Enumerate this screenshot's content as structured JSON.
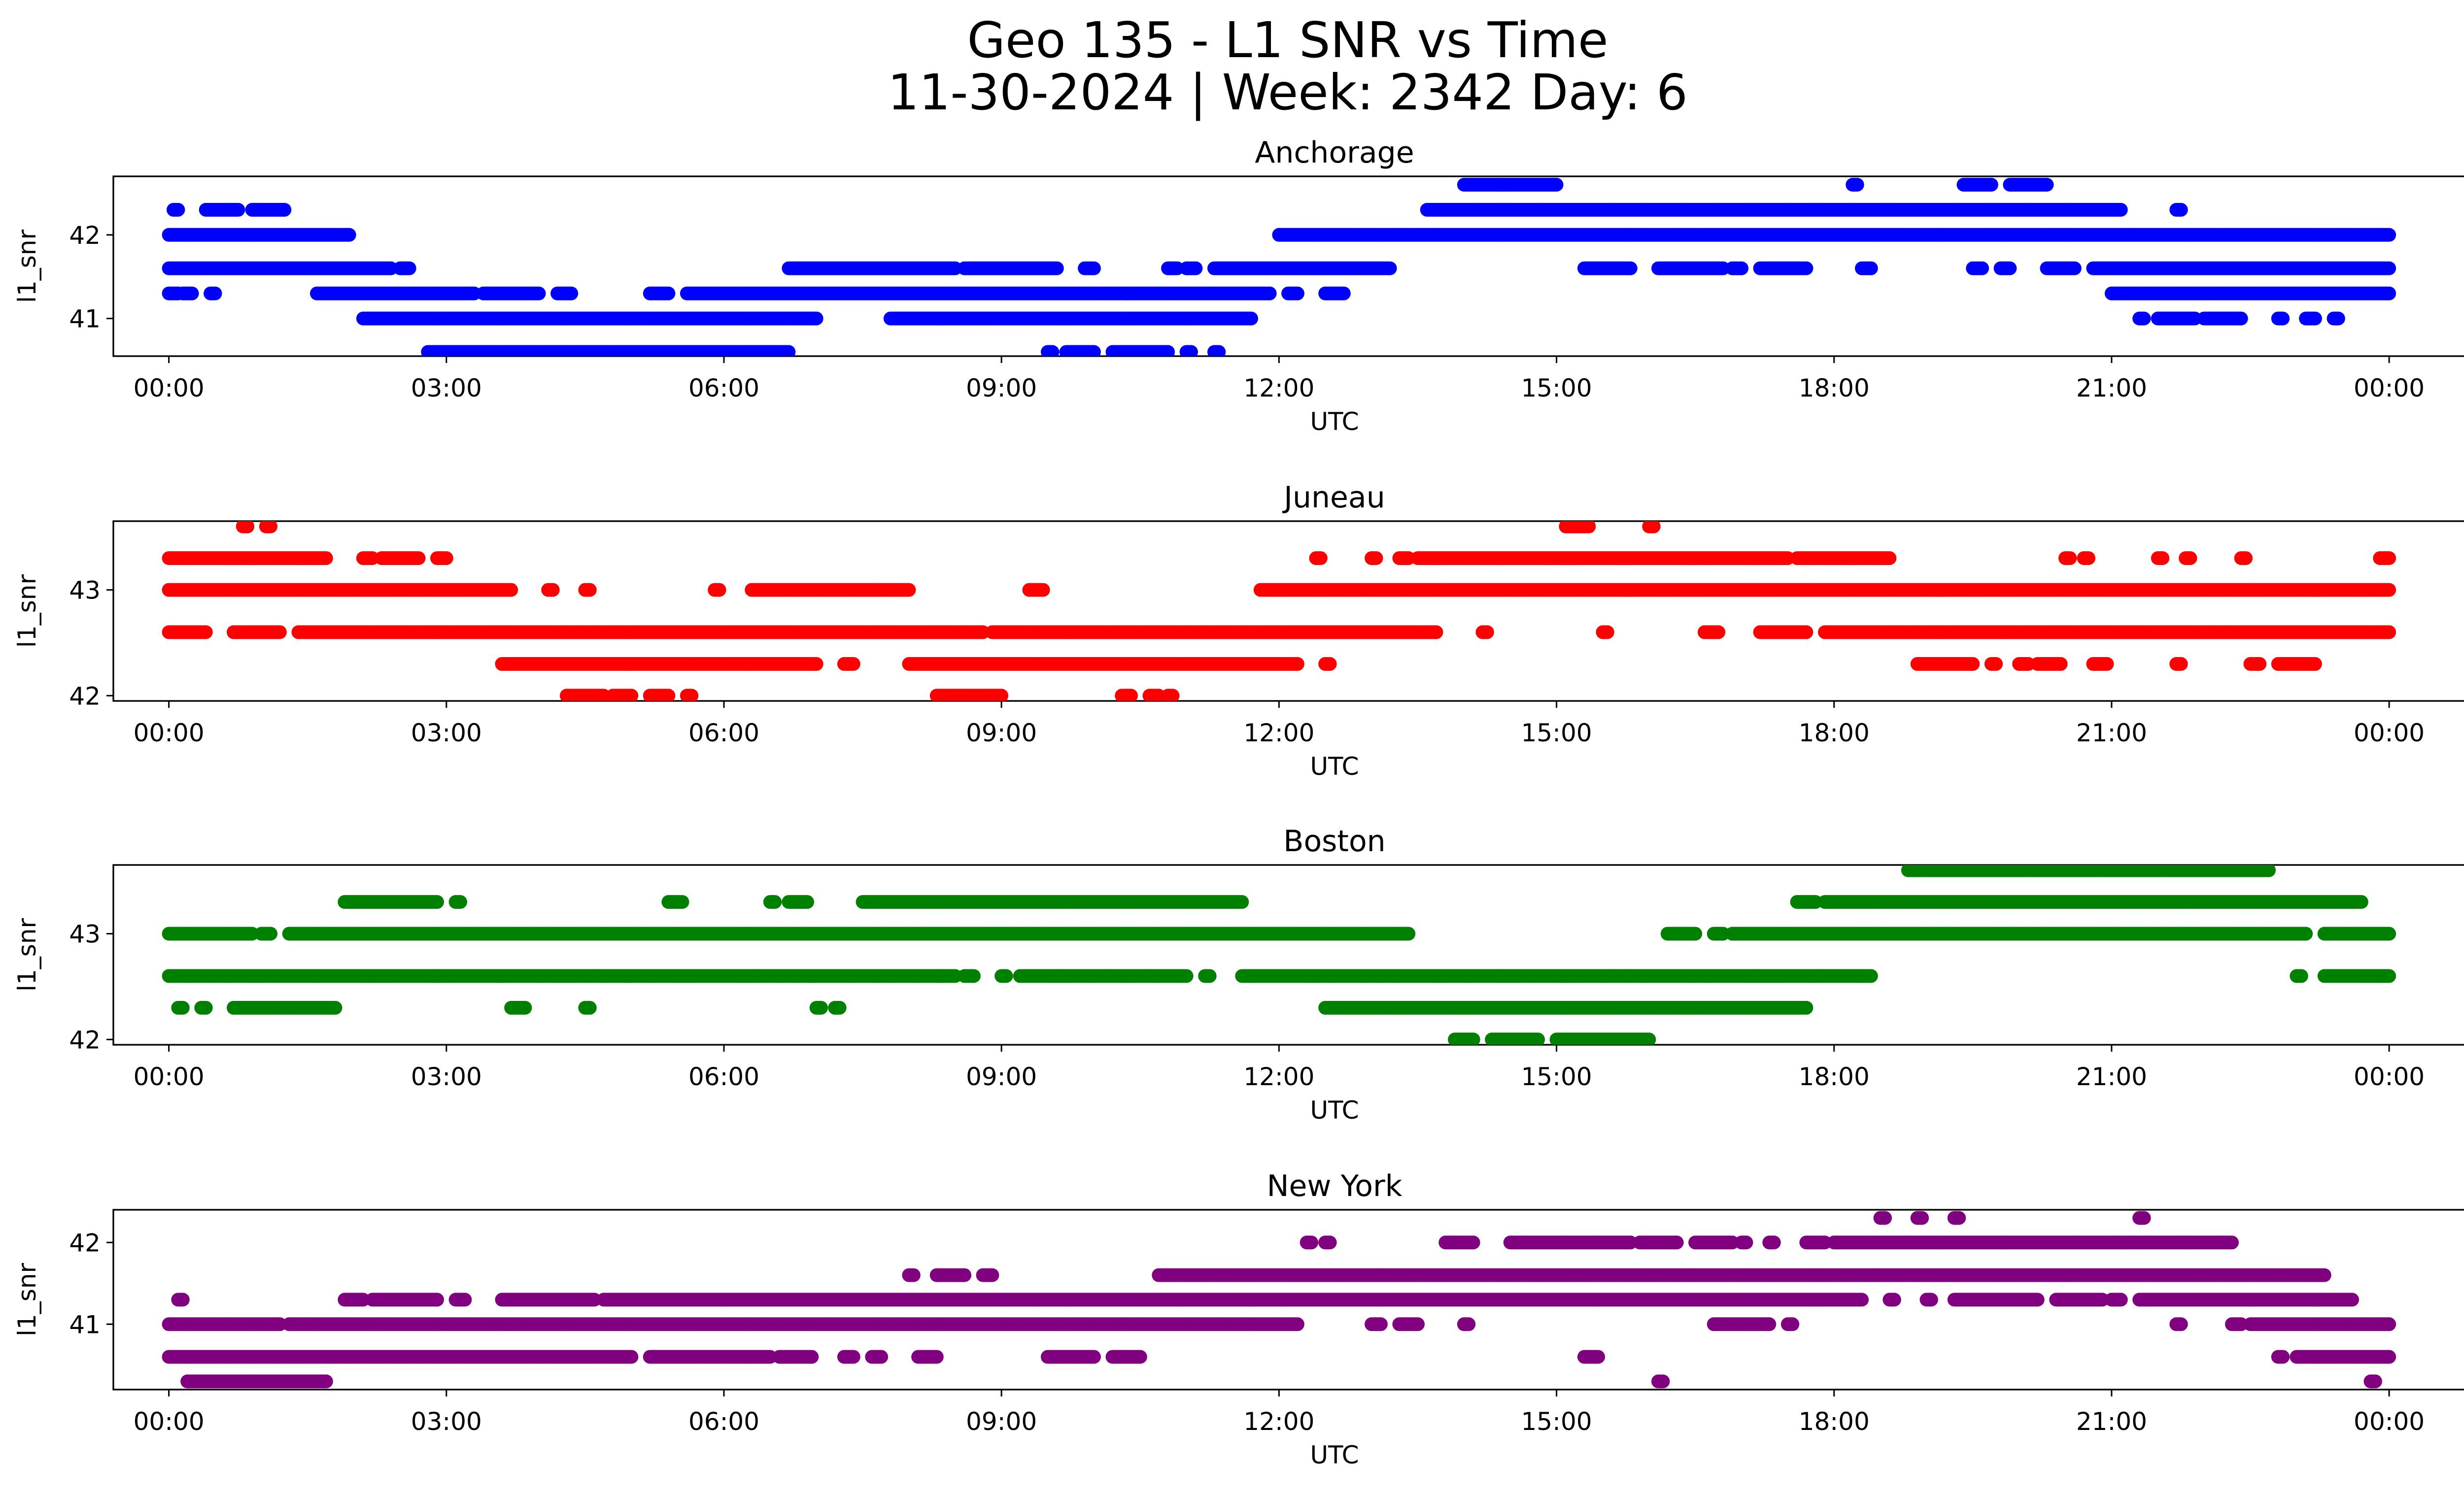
{
  "figure": {
    "title_line1": "Geo 135 - L1 SNR vs Time",
    "title_line2": "11-30-2024 | Week: 2342 Day: 6"
  },
  "chart_data": [
    {
      "type": "scatter",
      "title": "Anchorage",
      "color": "#0000ff",
      "xlabel": "UTC",
      "ylabel": "l1_snr",
      "x_unit": "hours since 00:00 UTC",
      "xlim": [
        -0.6,
        25.8
      ],
      "ylim": [
        40.55,
        42.7
      ],
      "yticks": [
        41,
        42
      ],
      "xticks": [
        0,
        3,
        6,
        9,
        12,
        15,
        18,
        21,
        24
      ],
      "xtick_labels": [
        "00:00",
        "03:00",
        "06:00",
        "09:00",
        "12:00",
        "15:00",
        "18:00",
        "21:00",
        "00:00"
      ],
      "segments": [
        {
          "y": 42.3,
          "ranges": [
            [
              0.05,
              0.1
            ],
            [
              0.4,
              0.75
            ],
            [
              0.9,
              1.25
            ]
          ]
        },
        {
          "y": 42.0,
          "ranges": [
            [
              0.0,
              1.95
            ]
          ]
        },
        {
          "y": 41.6,
          "ranges": [
            [
              0.0,
              2.4
            ],
            [
              2.5,
              2.6
            ],
            [
              6.7,
              8.5
            ],
            [
              8.6,
              9.6
            ],
            [
              9.9,
              10.0
            ],
            [
              10.8,
              10.9
            ],
            [
              11.0,
              11.1
            ],
            [
              11.3,
              13.2
            ],
            [
              15.3,
              15.8
            ],
            [
              16.1,
              16.8
            ],
            [
              16.9,
              17.0
            ],
            [
              17.2,
              17.7
            ],
            [
              18.3,
              18.4
            ],
            [
              19.5,
              19.6
            ],
            [
              19.8,
              19.9
            ],
            [
              20.3,
              20.6
            ],
            [
              20.8,
              24.0
            ]
          ]
        },
        {
          "y": 41.3,
          "ranges": [
            [
              0.0,
              0.1
            ],
            [
              0.15,
              0.25
            ],
            [
              0.45,
              0.5
            ],
            [
              1.6,
              3.3
            ],
            [
              3.4,
              4.0
            ],
            [
              4.2,
              4.35
            ],
            [
              5.2,
              5.4
            ],
            [
              5.6,
              11.9
            ],
            [
              12.1,
              12.2
            ],
            [
              12.5,
              12.7
            ],
            [
              21.0,
              24.0
            ]
          ]
        },
        {
          "y": 41.0,
          "ranges": [
            [
              2.1,
              7.0
            ],
            [
              7.8,
              11.7
            ],
            [
              21.3,
              21.35
            ],
            [
              21.5,
              21.9
            ],
            [
              22.0,
              22.4
            ],
            [
              22.8,
              22.85
            ],
            [
              23.1,
              23.2
            ],
            [
              23.4,
              23.45
            ]
          ]
        },
        {
          "y": 40.6,
          "ranges": [
            [
              2.8,
              6.7
            ],
            [
              9.5,
              9.55
            ],
            [
              9.7,
              10.0
            ],
            [
              10.2,
              10.8
            ],
            [
              11.0,
              11.05
            ],
            [
              11.3,
              11.35
            ]
          ]
        },
        {
          "y": 42.6,
          "ranges": [
            [
              14.0,
              15.0
            ],
            [
              18.2,
              18.25
            ],
            [
              19.4,
              19.7
            ],
            [
              19.9,
              20.3
            ]
          ]
        },
        {
          "y": 42.3,
          "ranges": [
            [
              13.6,
              21.1
            ],
            [
              21.7,
              21.75
            ]
          ]
        },
        {
          "y": 42.0,
          "ranges": [
            [
              12.0,
              24.0
            ]
          ]
        }
      ]
    },
    {
      "type": "scatter",
      "title": "Juneau",
      "color": "#ff0000",
      "xlabel": "UTC",
      "ylabel": "l1_snr",
      "x_unit": "hours since 00:00 UTC",
      "xlim": [
        -0.6,
        25.8
      ],
      "ylim": [
        41.95,
        43.65
      ],
      "yticks": [
        42,
        43
      ],
      "xticks": [
        0,
        3,
        6,
        9,
        12,
        15,
        18,
        21,
        24
      ],
      "xtick_labels": [
        "00:00",
        "03:00",
        "06:00",
        "09:00",
        "12:00",
        "15:00",
        "18:00",
        "21:00",
        "00:00"
      ],
      "segments": [
        {
          "y": 43.6,
          "ranges": [
            [
              0.8,
              0.85
            ],
            [
              1.05,
              1.1
            ],
            [
              15.1,
              15.35
            ],
            [
              16.0,
              16.05
            ]
          ]
        },
        {
          "y": 43.3,
          "ranges": [
            [
              0.0,
              1.7
            ],
            [
              2.1,
              2.2
            ],
            [
              2.3,
              2.7
            ],
            [
              2.9,
              3.0
            ],
            [
              12.4,
              12.45
            ],
            [
              13.0,
              13.05
            ],
            [
              13.3,
              13.4
            ],
            [
              13.5,
              17.5
            ],
            [
              17.6,
              18.6
            ],
            [
              20.5,
              20.55
            ],
            [
              20.7,
              20.75
            ],
            [
              21.5,
              21.55
            ],
            [
              21.8,
              21.85
            ],
            [
              22.4,
              22.45
            ],
            [
              23.9,
              24.0
            ]
          ]
        },
        {
          "y": 43.0,
          "ranges": [
            [
              0.0,
              3.7
            ],
            [
              4.1,
              4.15
            ],
            [
              4.5,
              4.55
            ],
            [
              5.9,
              5.95
            ],
            [
              6.3,
              8.0
            ],
            [
              9.3,
              9.45
            ],
            [
              11.8,
              24.0
            ]
          ]
        },
        {
          "y": 42.6,
          "ranges": [
            [
              0.0,
              0.4
            ],
            [
              0.7,
              1.2
            ],
            [
              1.4,
              8.8
            ],
            [
              8.9,
              13.7
            ],
            [
              14.2,
              14.25
            ],
            [
              15.5,
              15.55
            ],
            [
              16.6,
              16.75
            ],
            [
              17.2,
              17.7
            ],
            [
              17.9,
              24.0
            ]
          ]
        },
        {
          "y": 42.3,
          "ranges": [
            [
              3.6,
              7.0
            ],
            [
              7.3,
              7.4
            ],
            [
              8.0,
              12.2
            ],
            [
              12.5,
              12.55
            ],
            [
              18.9,
              19.5
            ],
            [
              19.7,
              19.75
            ],
            [
              20.0,
              20.1
            ],
            [
              20.2,
              20.45
            ],
            [
              20.8,
              20.95
            ],
            [
              21.7,
              21.75
            ],
            [
              22.5,
              22.6
            ],
            [
              22.8,
              23.2
            ]
          ]
        },
        {
          "y": 42.0,
          "ranges": [
            [
              4.3,
              4.7
            ],
            [
              4.8,
              5.0
            ],
            [
              5.2,
              5.4
            ],
            [
              5.6,
              5.65
            ],
            [
              8.3,
              9.0
            ],
            [
              10.3,
              10.4
            ],
            [
              10.6,
              10.7
            ],
            [
              10.8,
              10.85
            ]
          ]
        }
      ]
    },
    {
      "type": "scatter",
      "title": "Boston",
      "color": "#008000",
      "xlabel": "UTC",
      "ylabel": "l1_snr",
      "x_unit": "hours since 00:00 UTC",
      "xlim": [
        -0.6,
        25.8
      ],
      "ylim": [
        41.95,
        43.65
      ],
      "yticks": [
        42,
        43
      ],
      "xticks": [
        0,
        3,
        6,
        9,
        12,
        15,
        18,
        21,
        24
      ],
      "xtick_labels": [
        "00:00",
        "03:00",
        "06:00",
        "09:00",
        "12:00",
        "15:00",
        "18:00",
        "21:00",
        "00:00"
      ],
      "segments": [
        {
          "y": 43.6,
          "ranges": [
            [
              18.8,
              22.7
            ]
          ]
        },
        {
          "y": 43.3,
          "ranges": [
            [
              1.9,
              2.9
            ],
            [
              3.1,
              3.15
            ],
            [
              5.4,
              5.55
            ],
            [
              6.5,
              6.55
            ],
            [
              6.7,
              6.9
            ],
            [
              7.5,
              11.6
            ],
            [
              17.6,
              17.8
            ],
            [
              17.9,
              23.7
            ]
          ]
        },
        {
          "y": 43.0,
          "ranges": [
            [
              0.0,
              0.9
            ],
            [
              1.0,
              1.1
            ],
            [
              1.3,
              13.4
            ],
            [
              16.2,
              16.5
            ],
            [
              16.7,
              16.8
            ],
            [
              16.9,
              23.1
            ],
            [
              23.3,
              24.0
            ]
          ]
        },
        {
          "y": 42.6,
          "ranges": [
            [
              0.0,
              8.5
            ],
            [
              8.6,
              8.7
            ],
            [
              9.0,
              9.05
            ],
            [
              9.2,
              11.0
            ],
            [
              11.2,
              11.25
            ],
            [
              11.6,
              18.4
            ],
            [
              23.0,
              23.05
            ],
            [
              23.3,
              24.0
            ]
          ]
        },
        {
          "y": 42.3,
          "ranges": [
            [
              0.1,
              0.15
            ],
            [
              0.35,
              0.4
            ],
            [
              0.7,
              1.8
            ],
            [
              3.7,
              3.85
            ],
            [
              4.5,
              4.55
            ],
            [
              7.0,
              7.05
            ],
            [
              7.2,
              7.25
            ],
            [
              12.5,
              17.7
            ]
          ]
        },
        {
          "y": 42.0,
          "ranges": [
            [
              13.9,
              14.1
            ],
            [
              14.3,
              14.8
            ],
            [
              15.0,
              16.0
            ]
          ]
        }
      ]
    },
    {
      "type": "scatter",
      "title": "New York",
      "color": "#800080",
      "xlabel": "UTC",
      "ylabel": "l1_snr",
      "x_unit": "hours since 00:00 UTC",
      "xlim": [
        -0.6,
        25.8
      ],
      "ylim": [
        40.2,
        42.4
      ],
      "yticks": [
        41,
        42
      ],
      "xticks": [
        0,
        3,
        6,
        9,
        12,
        15,
        18,
        21,
        24
      ],
      "xtick_labels": [
        "00:00",
        "03:00",
        "06:00",
        "09:00",
        "12:00",
        "15:00",
        "18:00",
        "21:00",
        "00:00"
      ],
      "segments": [
        {
          "y": 42.3,
          "ranges": [
            [
              18.5,
              18.55
            ],
            [
              18.9,
              18.95
            ],
            [
              19.3,
              19.35
            ],
            [
              21.3,
              21.35
            ]
          ]
        },
        {
          "y": 42.0,
          "ranges": [
            [
              12.3,
              12.35
            ],
            [
              12.5,
              12.55
            ],
            [
              13.8,
              14.1
            ],
            [
              14.5,
              15.8
            ],
            [
              15.9,
              16.3
            ],
            [
              16.5,
              16.9
            ],
            [
              17.0,
              17.05
            ],
            [
              17.3,
              17.35
            ],
            [
              17.7,
              17.9
            ],
            [
              18.0,
              22.3
            ]
          ]
        },
        {
          "y": 41.6,
          "ranges": [
            [
              8.0,
              8.05
            ],
            [
              8.3,
              8.6
            ],
            [
              8.8,
              8.9
            ],
            [
              10.7,
              23.3
            ]
          ]
        },
        {
          "y": 41.3,
          "ranges": [
            [
              0.1,
              0.15
            ],
            [
              1.9,
              2.1
            ],
            [
              2.2,
              2.9
            ],
            [
              3.1,
              3.2
            ],
            [
              3.6,
              4.6
            ],
            [
              4.7,
              18.3
            ],
            [
              18.6,
              18.65
            ],
            [
              19.0,
              19.05
            ],
            [
              19.3,
              20.2
            ],
            [
              20.4,
              20.9
            ],
            [
              21.0,
              21.1
            ],
            [
              21.3,
              23.6
            ]
          ]
        },
        {
          "y": 41.0,
          "ranges": [
            [
              0.0,
              1.2
            ],
            [
              1.3,
              12.2
            ],
            [
              13.0,
              13.1
            ],
            [
              13.3,
              13.5
            ],
            [
              14.0,
              14.05
            ],
            [
              16.7,
              17.3
            ],
            [
              17.5,
              17.55
            ],
            [
              21.7,
              21.75
            ],
            [
              22.3,
              22.4
            ],
            [
              22.5,
              24.0
            ]
          ]
        },
        {
          "y": 40.6,
          "ranges": [
            [
              0.0,
              5.0
            ],
            [
              5.2,
              6.5
            ],
            [
              6.6,
              6.95
            ],
            [
              7.3,
              7.4
            ],
            [
              7.6,
              7.7
            ],
            [
              8.1,
              8.3
            ],
            [
              9.5,
              10.0
            ],
            [
              10.2,
              10.5
            ],
            [
              15.3,
              15.45
            ],
            [
              22.8,
              22.85
            ],
            [
              23.0,
              24.0
            ]
          ]
        },
        {
          "y": 40.3,
          "ranges": [
            [
              0.2,
              1.7
            ],
            [
              16.1,
              16.15
            ],
            [
              23.8,
              23.85
            ]
          ]
        }
      ]
    }
  ]
}
